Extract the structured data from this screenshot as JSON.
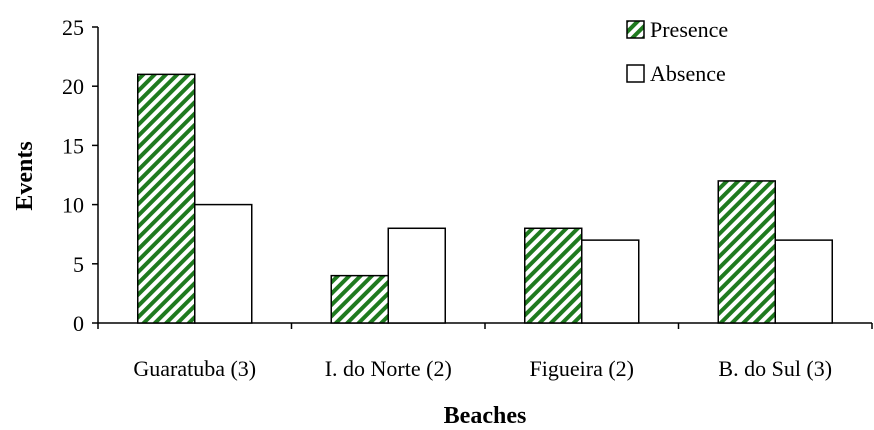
{
  "chart_data": {
    "type": "bar",
    "title": "",
    "xlabel": "Beaches",
    "ylabel": "Events",
    "ylim": [
      0,
      25
    ],
    "yticks": [
      0,
      5,
      10,
      15,
      20,
      25
    ],
    "grid": false,
    "legend_position": "top-right",
    "categories": [
      "Guaratuba (3)",
      "I. do Norte (2)",
      "Figueira (2)",
      "B. do Sul (3)"
    ],
    "series": [
      {
        "name": "Presence",
        "values": [
          21,
          4,
          8,
          12
        ],
        "fill": "hatched-green",
        "color": "#1f7a1f"
      },
      {
        "name": "Absence",
        "values": [
          10,
          8,
          7,
          7
        ],
        "fill": "white",
        "color": "#ffffff"
      }
    ]
  }
}
